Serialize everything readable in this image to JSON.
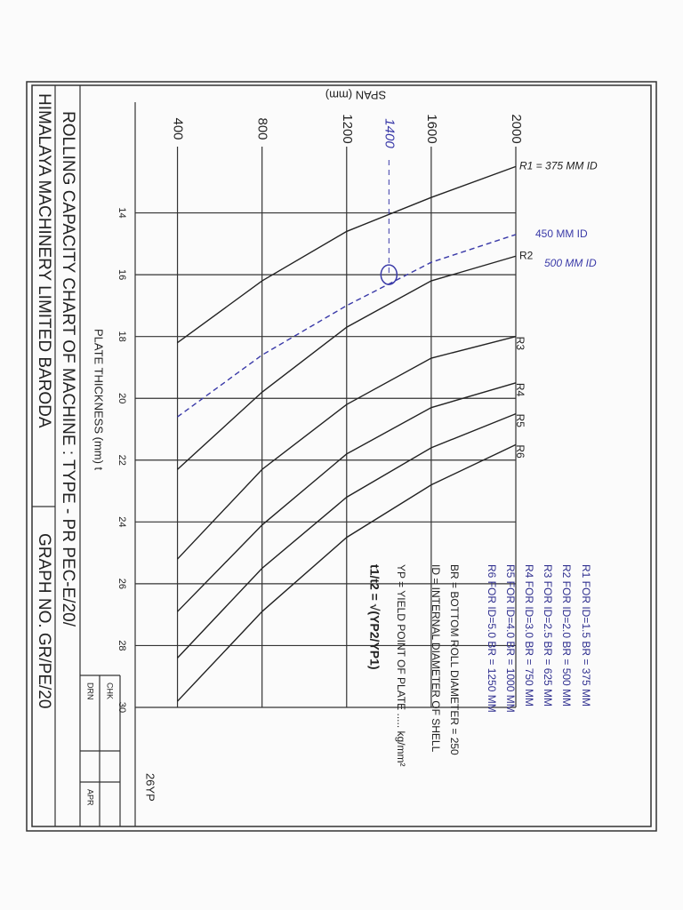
{
  "chart_data": {
    "type": "line",
    "title": "ROLLING CAPACITY CHART OF MACHINE : TYPE - PR PEC-E/20/",
    "subtitle": "HIMALAYA MACHINERY LIMITED BARODA",
    "graph_no": "GRAPH NO. GR/PE/20",
    "x_label": "SPAN (mm)",
    "y_label": "PLATE THICKNESS (mm) t",
    "x": [
      400,
      800,
      1200,
      1600,
      2000
    ],
    "xlim": [
      200,
      2000
    ],
    "xticks": [
      400,
      800,
      1200,
      1600,
      2000
    ],
    "ylim": [
      12,
      30
    ],
    "yticks": [
      14,
      16,
      18,
      20,
      22,
      24,
      26,
      28,
      30
    ],
    "grid": true,
    "series": [
      {
        "name": "R1 = 375 MM ID",
        "color": "#222222",
        "values": [
          18.2,
          16.2,
          14.6,
          13.5,
          12.5
        ]
      },
      {
        "name": "450 MM ID",
        "color": "#3a3aa8",
        "dashed": true,
        "values": [
          20.6,
          18.6,
          17.0,
          15.6,
          14.7
        ]
      },
      {
        "name": "R2",
        "color": "#222222",
        "values": [
          22.3,
          19.8,
          17.7,
          16.2,
          15.4
        ]
      },
      {
        "name": "R3",
        "color": "#222222",
        "values": [
          25.2,
          22.3,
          20.2,
          18.7,
          18.0
        ]
      },
      {
        "name": "R4",
        "color": "#222222",
        "values": [
          26.9,
          24.1,
          21.8,
          20.3,
          19.5
        ]
      },
      {
        "name": "R5",
        "color": "#222222",
        "values": [
          28.4,
          25.5,
          23.2,
          21.6,
          20.5
        ]
      },
      {
        "name": "R6",
        "color": "#222222",
        "values": [
          29.8,
          26.9,
          24.5,
          22.8,
          21.5
        ]
      }
    ],
    "annotations": [
      "500 MM ID",
      "26YP"
    ],
    "marker": {
      "x": 1400,
      "y": 16
    },
    "notes": [
      "R1 FOR ID=1.5 BR = 375 MM",
      "R2 FOR ID=2.0 BR = 500 MM",
      "R3 FOR ID=2.5 BR = 625 MM",
      "R4 FOR ID=3.0 BR = 750 MM",
      "R5 FOR ID=4.0 BR = 1000 MM",
      "R6 FOR ID=5.0 BR = 1250 MM",
      "BR = BOTTOM ROLL DIAMETER = 250",
      "ID = INTERNAL DIAMETER OF SHELL",
      "YP = YIELD POINT OF PLATE ..... kg/mm²",
      "t1/t2 = √(YP2/YP1)"
    ],
    "table": [
      "DRN",
      "CHK",
      "APR"
    ]
  }
}
